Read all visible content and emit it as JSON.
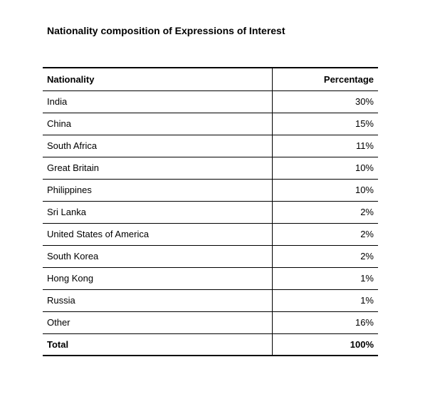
{
  "title": "Nationality composition of Expressions of Interest",
  "table": {
    "headers": {
      "nationality": "Nationality",
      "percentage": "Percentage"
    },
    "rows": [
      {
        "nationality": "India",
        "percentage": "30%"
      },
      {
        "nationality": "China",
        "percentage": "15%"
      },
      {
        "nationality": "South Africa",
        "percentage": "11%"
      },
      {
        "nationality": "Great Britain",
        "percentage": "10%"
      },
      {
        "nationality": "Philippines",
        "percentage": "10%"
      },
      {
        "nationality": "Sri Lanka",
        "percentage": "2%"
      },
      {
        "nationality": "United States of America",
        "percentage": "2%"
      },
      {
        "nationality": "South Korea",
        "percentage": "2%"
      },
      {
        "nationality": "Hong Kong",
        "percentage": "1%"
      },
      {
        "nationality": "Russia",
        "percentage": "1%"
      },
      {
        "nationality": "Other",
        "percentage": "16%"
      }
    ],
    "total": {
      "label": "Total",
      "value": "100%"
    }
  }
}
